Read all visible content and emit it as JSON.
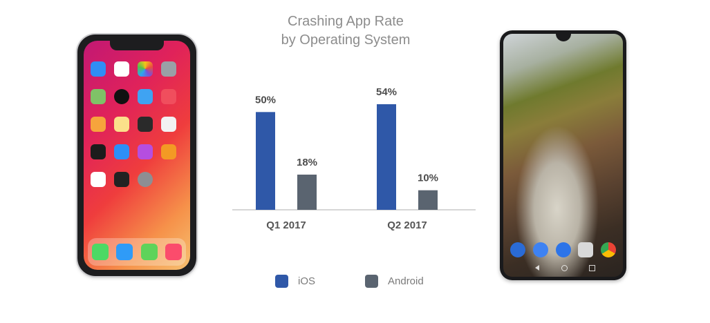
{
  "colors": {
    "ios": "#2f58a8",
    "android": "#5a6470",
    "axis": "#c8c8c8",
    "value_label": "#4c4c4c",
    "category_label": "#555555"
  },
  "chart_data": {
    "type": "bar",
    "title_lines": [
      "Crashing App Rate",
      "by Operating System"
    ],
    "categories": [
      "Q1 2017",
      "Q2 2017"
    ],
    "series": [
      {
        "name": "iOS",
        "values": [
          50,
          54
        ],
        "labels": [
          "50%",
          "54%"
        ]
      },
      {
        "name": "Android",
        "values": [
          18,
          10
        ],
        "labels": [
          "18%",
          "10%"
        ]
      }
    ],
    "value_unit": "%",
    "ylim": [
      0,
      60
    ],
    "grid": false,
    "legend_position": "bottom"
  }
}
